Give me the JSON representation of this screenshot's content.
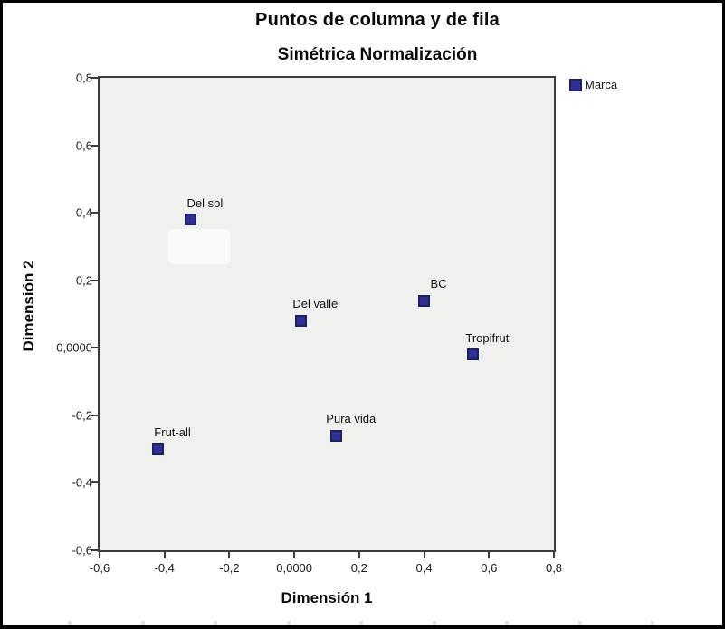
{
  "figure": {
    "title": "Puntos de columna y de fila",
    "subtitle": "Simétrica Normalización"
  },
  "colors": {
    "plot_background": "#F0F0EE",
    "axis_line": "#3C3C3C",
    "marker_fill": "#2E3191",
    "marker_border": "#1C2063",
    "text": "#0a0a0a"
  },
  "chart_data": {
    "type": "scatter",
    "title": "Puntos de columna y de fila",
    "subtitle": "Simétrica Normalización",
    "xlabel": "Dimensión 1",
    "ylabel": "Dimensión 2",
    "xlim": [
      -0.6,
      0.8
    ],
    "ylim": [
      -0.6,
      0.8
    ],
    "grid": false,
    "x_ticks": {
      "values": [
        -0.6,
        -0.4,
        -0.2,
        0.0,
        0.2,
        0.4,
        0.6,
        0.8
      ],
      "labels": [
        "-0,6",
        "-0,4",
        "-0,2",
        "0,0000",
        "0,2",
        "0,4",
        "0,6",
        "0,8"
      ]
    },
    "y_ticks": {
      "values": [
        0.8,
        0.6,
        0.4,
        0.2,
        0.0,
        -0.2,
        -0.4,
        -0.6
      ],
      "labels": [
        "0,8",
        "0,6",
        "0,4",
        "0,2",
        "0,0000",
        "-0,2",
        "-0,4",
        "-0,6"
      ]
    },
    "legend": {
      "position": "top-right-outside",
      "entries": [
        {
          "label": "Marca",
          "marker": "square",
          "color": "#2E3191"
        }
      ]
    },
    "series": [
      {
        "name": "Marca",
        "marker": "square",
        "color": "#2E3191",
        "border_color": "#1C2063",
        "points": [
          {
            "label": "Del sol",
            "x": -0.32,
            "y": 0.38
          },
          {
            "label": "Del valle",
            "x": 0.02,
            "y": 0.08
          },
          {
            "label": "BC",
            "x": 0.4,
            "y": 0.14
          },
          {
            "label": "Tropifrut",
            "x": 0.55,
            "y": -0.02
          },
          {
            "label": "Frut-all",
            "x": -0.42,
            "y": -0.3
          },
          {
            "label": "Pura vida",
            "x": 0.13,
            "y": -0.26
          }
        ]
      }
    ]
  }
}
